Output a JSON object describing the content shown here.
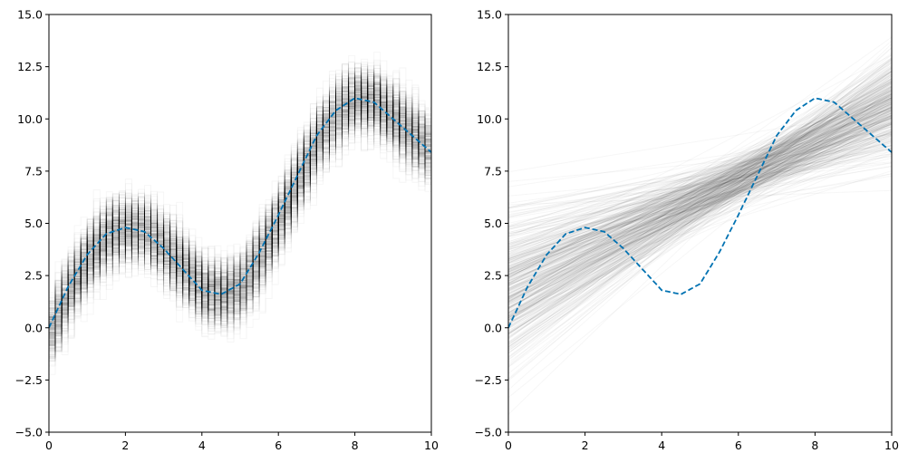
{
  "chart_data": [
    {
      "type": "line",
      "title": "",
      "xlabel": "",
      "ylabel": "",
      "xlim": [
        0,
        10
      ],
      "ylim": [
        -5,
        15
      ],
      "x_ticks": [
        "0",
        "2",
        "4",
        "6",
        "8",
        "10"
      ],
      "y_ticks": [
        "−5.0",
        "−2.5",
        "0.0",
        "2.5",
        "5.0",
        "7.5",
        "10.0",
        "12.5",
        "15.0"
      ],
      "grid": false,
      "background_samples": {
        "kind": "step",
        "description_color": "#000000",
        "count_approx": 400,
        "noise_sd_approx": 1.0
      },
      "series": [
        {
          "style": "dashed",
          "color": "#0072B2",
          "x": [
            0,
            0.5,
            1,
            1.5,
            2,
            2.5,
            3,
            3.5,
            4,
            4.5,
            5,
            5.5,
            6,
            6.5,
            7,
            7.5,
            8,
            8.5,
            9,
            9.5,
            10
          ],
          "y": [
            0.0,
            1.96,
            3.5,
            4.5,
            4.8,
            4.6,
            3.8,
            2.8,
            1.8,
            1.6,
            2.1,
            3.6,
            5.4,
            7.3,
            9.2,
            10.4,
            11.0,
            10.8,
            10.0,
            9.2,
            8.4
          ]
        }
      ]
    },
    {
      "type": "line",
      "title": "",
      "xlabel": "",
      "ylabel": "",
      "xlim": [
        0,
        10
      ],
      "ylim": [
        -5,
        15
      ],
      "x_ticks": [
        "0",
        "2",
        "4",
        "6",
        "8",
        "10"
      ],
      "y_ticks": [
        "−5.0",
        "−2.5",
        "0.0",
        "2.5",
        "5.0",
        "7.5",
        "10.0",
        "12.5",
        "15.0"
      ],
      "grid": false,
      "background_samples": {
        "kind": "linear",
        "description_color": "#000000",
        "count_approx": 400,
        "intercept_mean": 2.0,
        "slope_mean": 0.85,
        "pivot_x": 6.0,
        "pivot_y": 7.1
      },
      "series": [
        {
          "style": "dashed",
          "color": "#0072B2",
          "x": [
            0,
            0.5,
            1,
            1.5,
            2,
            2.5,
            3,
            3.5,
            4,
            4.5,
            5,
            5.5,
            6,
            6.5,
            7,
            7.5,
            8,
            8.5,
            9,
            9.5,
            10
          ],
          "y": [
            0.0,
            1.96,
            3.5,
            4.5,
            4.8,
            4.6,
            3.8,
            2.8,
            1.8,
            1.6,
            2.1,
            3.6,
            5.4,
            7.3,
            9.2,
            10.4,
            11.0,
            10.8,
            10.0,
            9.2,
            8.4
          ]
        }
      ]
    }
  ]
}
